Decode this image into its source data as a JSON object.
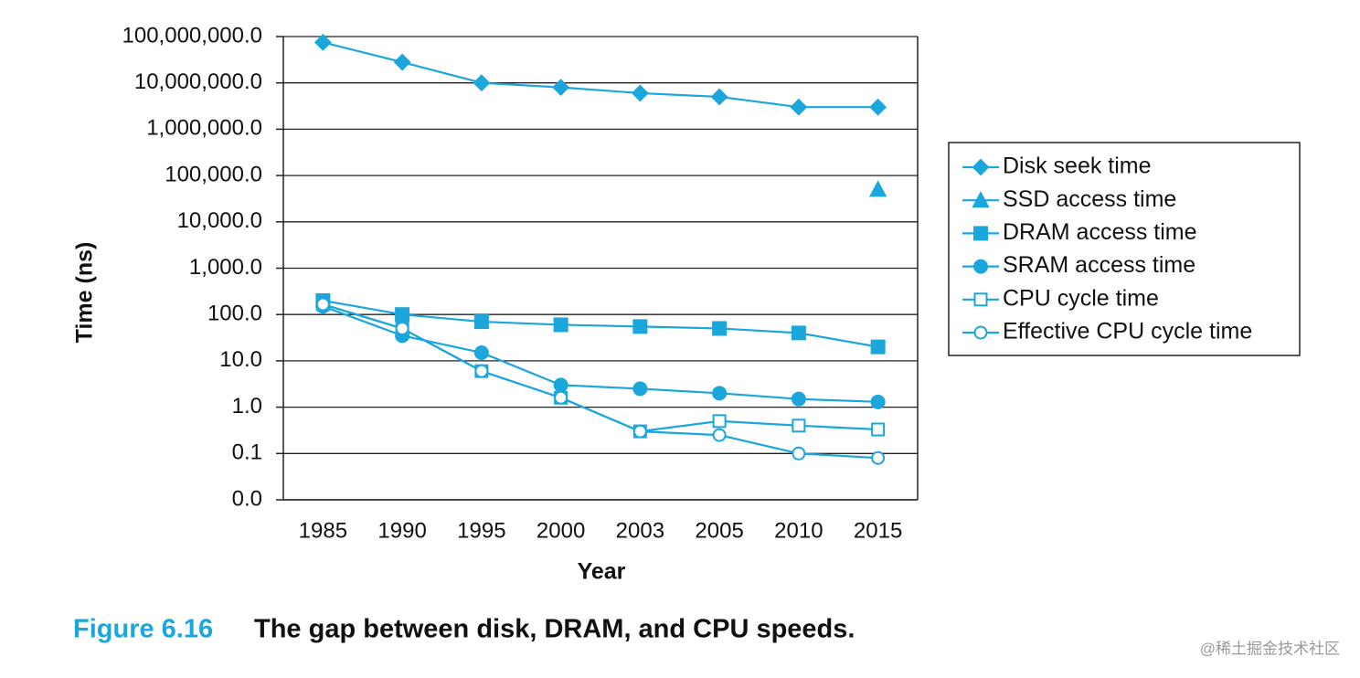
{
  "chart_data": {
    "type": "line",
    "figure_label": "Figure 6.16",
    "title": "The gap between disk, DRAM, and CPU speeds.",
    "x_label": "Year",
    "y_label": "Time (ns)",
    "watermark": "@稀土掘金技术社区",
    "log_scale": true,
    "grid": true,
    "legend_position": "right",
    "categories": [
      "1985",
      "1990",
      "1995",
      "2000",
      "2003",
      "2005",
      "2010",
      "2015"
    ],
    "ylim": [
      0.01,
      100000000
    ],
    "yticks": [
      {
        "value": 0.01,
        "label": "0.0"
      },
      {
        "value": 0.1,
        "label": "0.1"
      },
      {
        "value": 1,
        "label": "1.0"
      },
      {
        "value": 10,
        "label": "10.0"
      },
      {
        "value": 100,
        "label": "100.0"
      },
      {
        "value": 1000,
        "label": "1,000.0"
      },
      {
        "value": 10000,
        "label": "10,000.0"
      },
      {
        "value": 100000,
        "label": "100,000.0"
      },
      {
        "value": 1000000,
        "label": "1,000,000.0"
      },
      {
        "value": 10000000,
        "label": "10,000,000.0"
      },
      {
        "value": 100000000,
        "label": "100,000,000.0"
      }
    ],
    "series": [
      {
        "name": "Disk seek time",
        "color": "#1ba6dc",
        "marker": "diamond",
        "values": [
          75000000,
          28000000,
          10000000,
          8000000,
          6000000,
          5000000,
          3000000,
          3000000
        ]
      },
      {
        "name": "SSD access time",
        "color": "#1ba6dc",
        "marker": "triangle",
        "values": [
          null,
          null,
          null,
          null,
          null,
          null,
          null,
          50000
        ]
      },
      {
        "name": "DRAM access time",
        "color": "#1ba6dc",
        "marker": "square",
        "values": [
          200,
          100,
          70,
          60,
          55,
          50,
          40,
          20
        ]
      },
      {
        "name": "SRAM access time",
        "color": "#1ba6dc",
        "marker": "circle",
        "values": [
          150,
          35,
          15,
          3,
          2.5,
          2,
          1.5,
          1.3
        ]
      },
      {
        "name": "CPU cycle time",
        "color": "#1ba6dc",
        "marker": "open-square",
        "values": [
          166,
          50,
          6,
          1.6,
          0.3,
          0.5,
          0.4,
          0.33
        ]
      },
      {
        "name": "Effective CPU cycle time",
        "color": "#1ba6dc",
        "marker": "open-circle",
        "values": [
          166,
          50,
          6,
          1.6,
          0.3,
          0.25,
          0.1,
          0.08
        ]
      }
    ]
  }
}
